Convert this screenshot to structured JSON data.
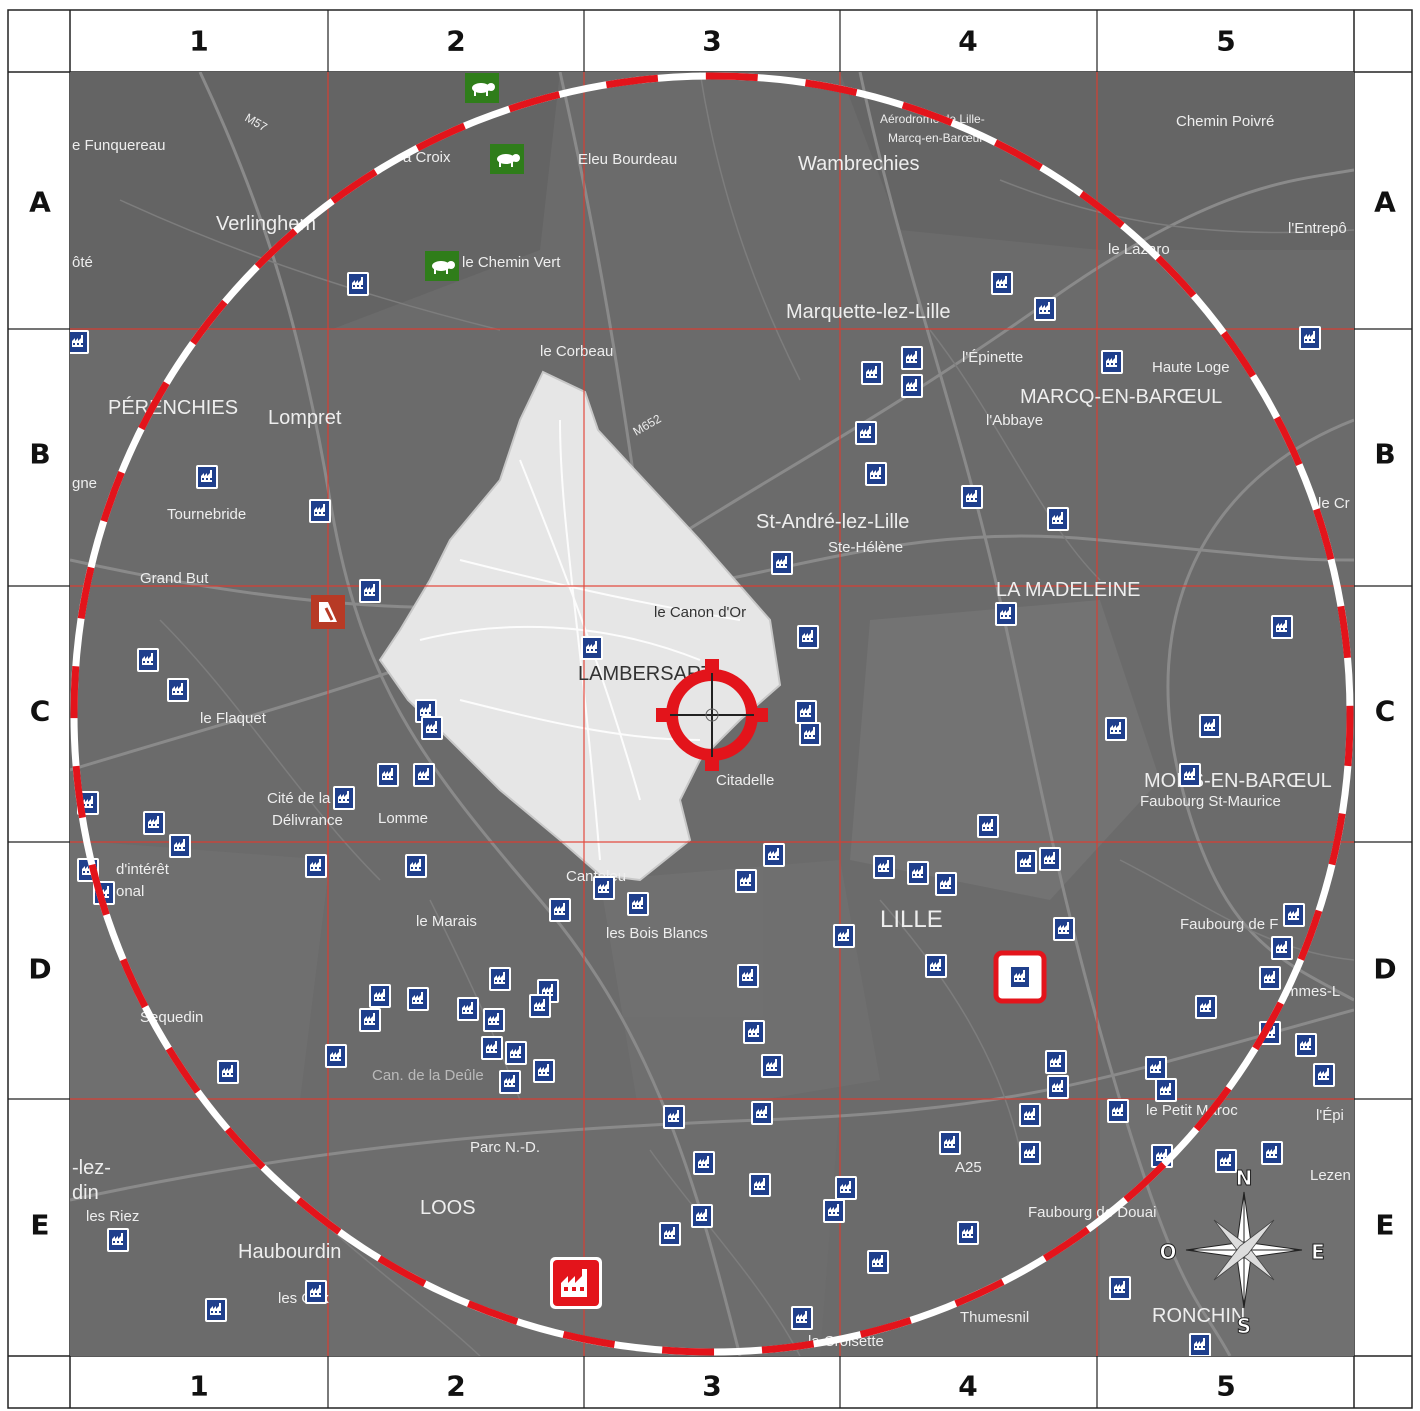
{
  "grid": {
    "columns": [
      "1",
      "2",
      "3",
      "4",
      "5"
    ],
    "rows": [
      "A",
      "B",
      "C",
      "D",
      "E"
    ]
  },
  "colors": {
    "map_background": "#6a6a6a",
    "zone_fill": "#e6e6e6",
    "grid_lines": "#e23b2e",
    "circle_dash": "#e3141b",
    "circle_base": "#ffffff",
    "factory_icon": "#1f3f8c",
    "farm_icon": "#2f7d1a",
    "highlight": "#e3141b"
  },
  "map": {
    "places": [
      {
        "id": "funquereau",
        "text": "e Funquereau"
      },
      {
        "id": "croix",
        "text": "a Croix"
      },
      {
        "id": "eleu",
        "text": "Eleu Bourdeau"
      },
      {
        "id": "wambrechies",
        "text": "Wambrechies"
      },
      {
        "id": "aerodrome1",
        "text": "Aérodrome de Lille-"
      },
      {
        "id": "aerodrome2",
        "text": "Marcq-en-Barœul"
      },
      {
        "id": "chemin-poivre",
        "text": "Chemin Poivré"
      },
      {
        "id": "verlinghem",
        "text": "Verlinghem"
      },
      {
        "id": "chemin-vert",
        "text": "le Chemin Vert"
      },
      {
        "id": "lentrepot",
        "text": "l'Entrepô"
      },
      {
        "id": "le-lazaro",
        "text": "le Lazaro"
      },
      {
        "id": "ote",
        "text": "ôté"
      },
      {
        "id": "marquette",
        "text": "Marquette-lez-Lille"
      },
      {
        "id": "le-corbeau",
        "text": "le Corbeau"
      },
      {
        "id": "lepinette",
        "text": "l'Épinette"
      },
      {
        "id": "haute-loge",
        "text": "Haute Loge"
      },
      {
        "id": "perenchies",
        "text": "PÉRENCHIES"
      },
      {
        "id": "lompret",
        "text": "Lompret"
      },
      {
        "id": "marcq",
        "text": "MARCQ-EN-BARŒUL"
      },
      {
        "id": "labbaye",
        "text": "l'Abbaye"
      },
      {
        "id": "gne",
        "text": "gne"
      },
      {
        "id": "tournebride",
        "text": "Tournebride"
      },
      {
        "id": "le-cr",
        "text": "le Cr"
      },
      {
        "id": "st-andre",
        "text": "St-André-lez-Lille"
      },
      {
        "id": "ste-helene",
        "text": "Ste-Hélène"
      },
      {
        "id": "grand-but",
        "text": "Grand But"
      },
      {
        "id": "la-madeleine",
        "text": "LA MADELEINE"
      },
      {
        "id": "canon-dor",
        "text": "le Canon d'Or"
      },
      {
        "id": "lambersart",
        "text": "LAMBERSART"
      },
      {
        "id": "le-flaquet",
        "text": "le Flaquet"
      },
      {
        "id": "citadelle",
        "text": "Citadelle"
      },
      {
        "id": "mons",
        "text": "MONS-EN-BARŒUL"
      },
      {
        "id": "faubourg-st-maurice",
        "text": "Faubourg St-Maurice"
      },
      {
        "id": "cite-de-la",
        "text": "Cité de la"
      },
      {
        "id": "delivrance",
        "text": "Délivrance"
      },
      {
        "id": "lomme",
        "text": "Lomme"
      },
      {
        "id": "interet",
        "text": "d'intérêt"
      },
      {
        "id": "onal",
        "text": "onal"
      },
      {
        "id": "canteleu",
        "text": "Canteleu"
      },
      {
        "id": "lille",
        "text": "LILLE"
      },
      {
        "id": "le-marais",
        "text": "le Marais"
      },
      {
        "id": "bois-blancs",
        "text": "les Bois Blancs"
      },
      {
        "id": "faubourg-de-f",
        "text": "Faubourg de F"
      },
      {
        "id": "sequedin",
        "text": "Sequedin"
      },
      {
        "id": "mmes",
        "text": "mmes-L"
      },
      {
        "id": "can-deule",
        "text": "Can. de la Deûle"
      },
      {
        "id": "petit-maroc",
        "text": "le Petit Maroc"
      },
      {
        "id": "lepi",
        "text": "l'Épi"
      },
      {
        "id": "parc-nd",
        "text": "Parc N.-D."
      },
      {
        "id": "a25",
        "text": "A25"
      },
      {
        "id": "lez",
        "text": "-lez-"
      },
      {
        "id": "din",
        "text": "din"
      },
      {
        "id": "les-riez",
        "text": "les Riez"
      },
      {
        "id": "loos",
        "text": "LOOS"
      },
      {
        "id": "faubourg-douai",
        "text": "Faubourg de Douai"
      },
      {
        "id": "lezen",
        "text": "Lezen"
      },
      {
        "id": "haubourdin",
        "text": "Haubourdin"
      },
      {
        "id": "les-ux",
        "text": "les Oux"
      },
      {
        "id": "thumesnil",
        "text": "Thumesnil"
      },
      {
        "id": "ronchin",
        "text": "RONCHIN"
      },
      {
        "id": "croisette",
        "text": "la Croisette"
      },
      {
        "id": "m57",
        "text": "M57"
      },
      {
        "id": "m652",
        "text": "M652"
      }
    ]
  },
  "compass": {
    "north": "N",
    "south": "S",
    "east": "E",
    "west": "O"
  }
}
